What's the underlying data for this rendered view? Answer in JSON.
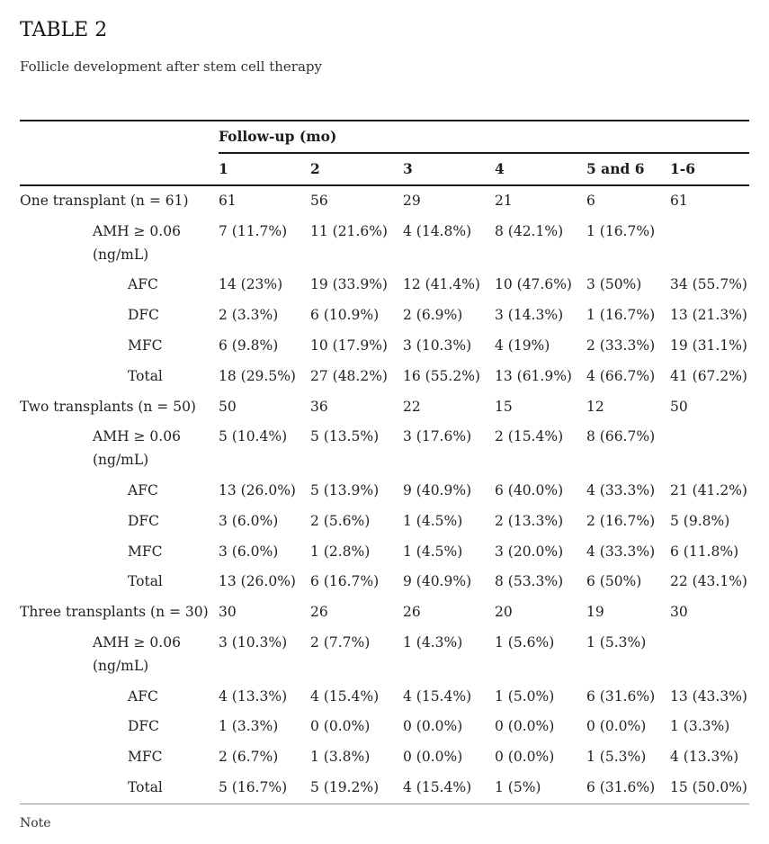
{
  "title": "TABLE 2",
  "subtitle": "Follicle development after stem cell therapy",
  "note": "Note",
  "table": {
    "header_group": "Follow-up (mo)",
    "columns": [
      "1",
      "2",
      "3",
      "4",
      "5 and 6",
      "1-6"
    ],
    "sections": [
      {
        "label": "One transplant (n = 61)",
        "counts": [
          "61",
          "56",
          "29",
          "21",
          "6",
          "61"
        ],
        "rows": [
          {
            "label": "AMH ≥ 0.06 (ng/mL)",
            "indent": 1,
            "values": [
              "7 (11.7%)",
              "11 (21.6%)",
              "4 (14.8%)",
              "8 (42.1%)",
              "1 (16.7%)",
              ""
            ]
          },
          {
            "label": "AFC",
            "indent": 2,
            "values": [
              "14 (23%)",
              "19 (33.9%)",
              "12 (41.4%)",
              "10 (47.6%)",
              "3 (50%)",
              "34 (55.7%)"
            ]
          },
          {
            "label": "DFC",
            "indent": 2,
            "values": [
              "2 (3.3%)",
              "6 (10.9%)",
              "2 (6.9%)",
              "3 (14.3%)",
              "1 (16.7%)",
              "13 (21.3%)"
            ]
          },
          {
            "label": "MFC",
            "indent": 2,
            "values": [
              "6 (9.8%)",
              "10 (17.9%)",
              "3 (10.3%)",
              "4 (19%)",
              "2 (33.3%)",
              "19 (31.1%)"
            ]
          },
          {
            "label": "Total",
            "indent": 2,
            "values": [
              "18 (29.5%)",
              "27 (48.2%)",
              "16 (55.2%)",
              "13 (61.9%)",
              "4 (66.7%)",
              "41 (67.2%)"
            ]
          }
        ]
      },
      {
        "label": "Two transplants (n = 50)",
        "counts": [
          "50",
          "36",
          "22",
          "15",
          "12",
          "50"
        ],
        "rows": [
          {
            "label": "AMH ≥ 0.06 (ng/mL)",
            "indent": 1,
            "values": [
              "5 (10.4%)",
              "5 (13.5%)",
              "3 (17.6%)",
              "2 (15.4%)",
              "8 (66.7%)",
              ""
            ]
          },
          {
            "label": "AFC",
            "indent": 2,
            "values": [
              "13 (26.0%)",
              "5 (13.9%)",
              "9 (40.9%)",
              "6 (40.0%)",
              "4 (33.3%)",
              "21 (41.2%)"
            ]
          },
          {
            "label": "DFC",
            "indent": 2,
            "values": [
              "3 (6.0%)",
              "2 (5.6%)",
              "1 (4.5%)",
              "2 (13.3%)",
              "2 (16.7%)",
              "5 (9.8%)"
            ]
          },
          {
            "label": "MFC",
            "indent": 2,
            "values": [
              "3 (6.0%)",
              "1 (2.8%)",
              "1 (4.5%)",
              "3 (20.0%)",
              "4 (33.3%)",
              "6 (11.8%)"
            ]
          },
          {
            "label": "Total",
            "indent": 2,
            "values": [
              "13 (26.0%)",
              "6 (16.7%)",
              "9 (40.9%)",
              "8 (53.3%)",
              "6 (50%)",
              "22 (43.1%)"
            ]
          }
        ]
      },
      {
        "label": "Three transplants (n = 30)",
        "counts": [
          "30",
          "26",
          "26",
          "20",
          "19",
          "30"
        ],
        "rows": [
          {
            "label": "AMH ≥ 0.06 (ng/mL)",
            "indent": 1,
            "values": [
              "3 (10.3%)",
              "2 (7.7%)",
              "1 (4.3%)",
              "1 (5.6%)",
              "1 (5.3%)",
              ""
            ]
          },
          {
            "label": "AFC",
            "indent": 2,
            "values": [
              "4 (13.3%)",
              "4 (15.4%)",
              "4 (15.4%)",
              "1 (5.0%)",
              "6 (31.6%)",
              "13 (43.3%)"
            ]
          },
          {
            "label": "DFC",
            "indent": 2,
            "values": [
              "1 (3.3%)",
              "0 (0.0%)",
              "0 (0.0%)",
              "0 (0.0%)",
              "0 (0.0%)",
              "1 (3.3%)"
            ]
          },
          {
            "label": "MFC",
            "indent": 2,
            "values": [
              "2 (6.7%)",
              "1 (3.8%)",
              "0 (0.0%)",
              "0 (0.0%)",
              "1 (5.3%)",
              "4 (13.3%)"
            ]
          },
          {
            "label": "Total",
            "indent": 2,
            "values": [
              "5 (16.7%)",
              "5 (19.2%)",
              "4 (15.4%)",
              "1 (5%)",
              "6 (31.6%)",
              "15 (50.0%)"
            ]
          }
        ]
      }
    ]
  }
}
